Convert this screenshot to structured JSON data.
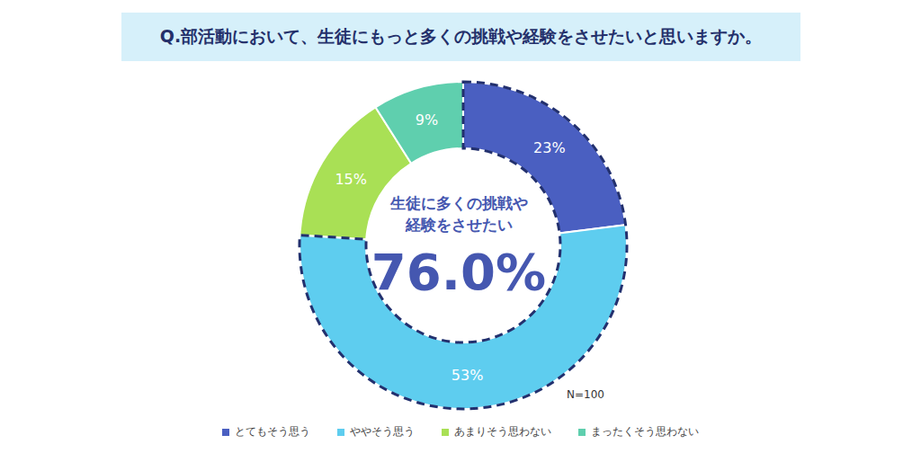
{
  "chart_data": {
    "type": "pie",
    "title": "Q.部活動において、生徒にもっと多くの挑戦や経験をさせたいと思いますか。",
    "categories": [
      "とてもそう思う",
      "ややそう思う",
      "あまりそう思わない",
      "まったくそう思わない"
    ],
    "values": [
      23,
      53,
      15,
      9
    ],
    "value_labels": [
      "23%",
      "53%",
      "15%",
      "9%"
    ],
    "colors": [
      "#4a5fc1",
      "#5ecdef",
      "#a9e055",
      "#5fcfae"
    ],
    "data_labels": true,
    "legend": "bottom",
    "center_label": [
      "生徒に多くの挑戦や",
      "経験をさせたい"
    ],
    "center_value": "76.0%",
    "note": "N=100"
  }
}
